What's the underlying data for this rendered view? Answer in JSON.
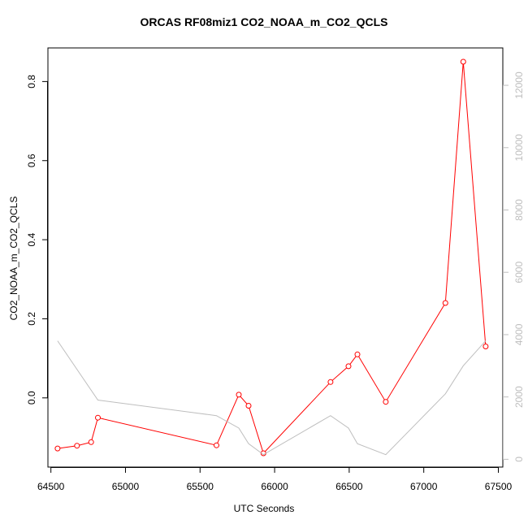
{
  "chart_data": {
    "type": "line",
    "title": "ORCAS RF08miz1 CO2_NOAA_m_CO2_QCLS",
    "xlabel": "UTC Seconds",
    "ylabel": "CO2_NOAA_m_CO2_QCLS",
    "xlim": [
      64480,
      67530
    ],
    "ylim": [
      -0.175,
      0.885
    ],
    "y2lim": [
      -250,
      13200
    ],
    "grid": false,
    "x_ticks": [
      64500,
      65000,
      65500,
      66000,
      66500,
      67000,
      67500
    ],
    "y_ticks": [
      0.0,
      0.2,
      0.4,
      0.6,
      0.8
    ],
    "y2_ticks": [
      0,
      2000,
      4000,
      6000,
      8000,
      10000,
      12000
    ],
    "colors": {
      "primary": "#ff0000",
      "secondary": "#bebebe",
      "axis": "#000000"
    },
    "series": [
      {
        "axis": "left",
        "color": "#ff0000",
        "markers": "open-circle",
        "points": [
          [
            64545,
            -0.128
          ],
          [
            64675,
            -0.121
          ],
          [
            64770,
            -0.112
          ],
          [
            64815,
            -0.05
          ],
          [
            65610,
            -0.12
          ],
          [
            65760,
            0.008
          ],
          [
            65825,
            -0.02
          ],
          [
            65925,
            -0.14
          ],
          [
            66375,
            0.04
          ],
          [
            66495,
            0.08
          ],
          [
            66555,
            0.11
          ],
          [
            66745,
            -0.01
          ],
          [
            67145,
            0.24
          ],
          [
            67265,
            0.85
          ],
          [
            67415,
            0.13
          ]
        ]
      },
      {
        "axis": "right",
        "color": "#bebebe",
        "markers": "none",
        "points": [
          [
            64545,
            3800
          ],
          [
            64815,
            1900
          ],
          [
            65610,
            1400
          ],
          [
            65760,
            1000
          ],
          [
            65825,
            500
          ],
          [
            65925,
            150
          ],
          [
            66375,
            1400
          ],
          [
            66495,
            1000
          ],
          [
            66555,
            500
          ],
          [
            66745,
            150
          ],
          [
            67145,
            2100
          ],
          [
            67265,
            3000
          ],
          [
            67415,
            3800
          ]
        ]
      }
    ]
  }
}
